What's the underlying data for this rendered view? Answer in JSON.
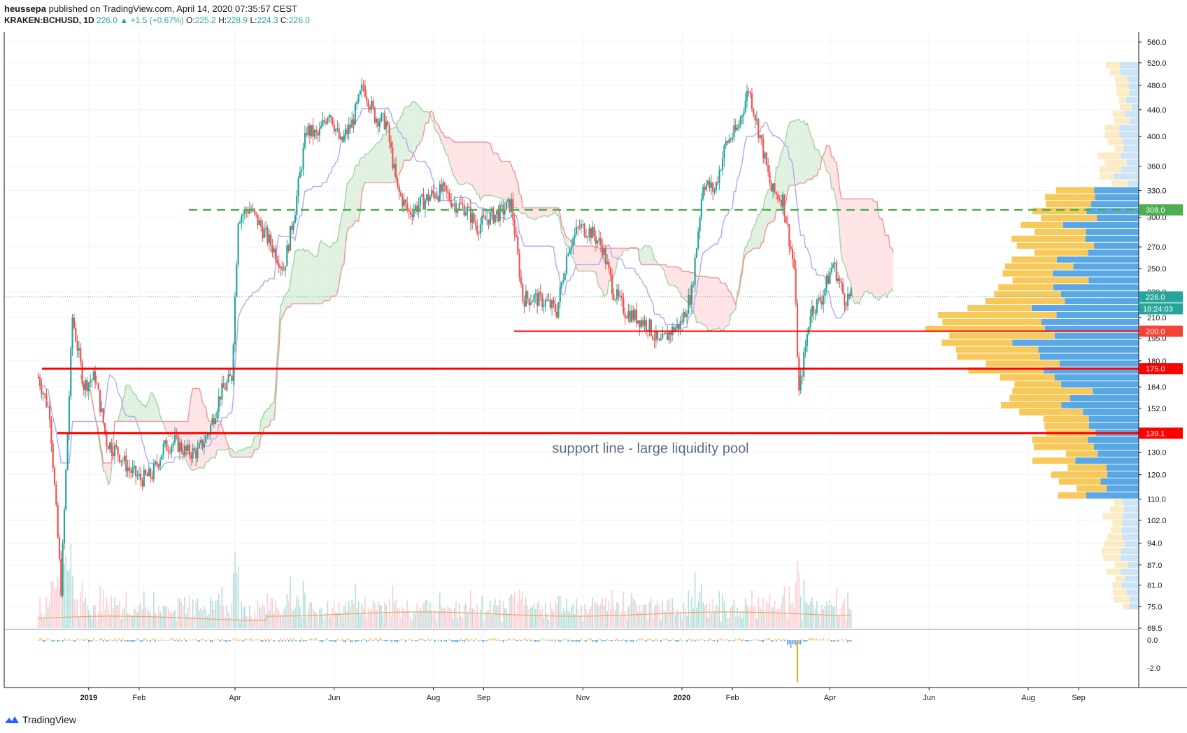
{
  "header": {
    "author": "heussepa",
    "published": "published on TradingView.com, April 14, 2020 07:35:57 CEST",
    "symbol": "KRAKEN:BCHUSD, 1D",
    "last": "226.0",
    "arrow": "▲",
    "change": "+1.5 (+0.67%)",
    "o_label": "O:",
    "o": "225.2",
    "h_label": "H:",
    "h": "228.9",
    "l_label": "L:",
    "l": "224.3",
    "c_label": "C:",
    "c": "226.0"
  },
  "footer": {
    "brand": "TradingView",
    "logo_icon": "tradingview-logo-icon"
  },
  "colors": {
    "bull": "#26a69a",
    "bear": "#ef5350",
    "grid": "#f0f3fa",
    "support": "#ff0000",
    "resistance_dash": "#4caf50",
    "vp_up": "#5aa7e6",
    "vp_down": "#f7c85a",
    "kijun": "#b3adf0",
    "cloud_green": "#c8e6c9",
    "cloud_red": "#ffcdd2",
    "volume_ma": "#f4a460"
  },
  "chart_data": {
    "type": "candlestick",
    "symbol": "KRAKEN:BCHUSD",
    "timeframe": "1D",
    "yscale": "log",
    "ylim": [
      69.5,
      580
    ],
    "price_ticks": [
      "560.0",
      "520.0",
      "480.0",
      "440.0",
      "400.0",
      "360.0",
      "330.0",
      "300.0",
      "270.0",
      "250.0",
      "230.0",
      "210.0",
      "195.0",
      "180.0",
      "164.0",
      "152.0",
      "140.0",
      "130.0",
      "120.0",
      "110.0",
      "102.0",
      "94.0",
      "87.0",
      "81.0",
      "75.0",
      "69.5"
    ],
    "osc_ticks": [
      "0.0",
      "-2.0"
    ],
    "time_ticks": [
      {
        "label": "2019",
        "bold": true
      },
      {
        "label": "Feb"
      },
      {
        "label": "Apr"
      },
      {
        "label": "Jun"
      },
      {
        "label": "Aug"
      },
      {
        "label": "Sep"
      },
      {
        "label": "Nov"
      },
      {
        "label": "2020",
        "bold": true
      },
      {
        "label": "Feb"
      },
      {
        "label": "Apr"
      },
      {
        "label": "Jun"
      },
      {
        "label": "Aug"
      },
      {
        "label": "Sep"
      }
    ],
    "price_path": [
      [
        "2018-12-01",
        170
      ],
      [
        "2018-12-08",
        150
      ],
      [
        "2018-12-15",
        80
      ],
      [
        "2018-12-22",
        210
      ],
      [
        "2018-12-29",
        165
      ],
      [
        "2019-01-05",
        170
      ],
      [
        "2019-01-12",
        135
      ],
      [
        "2019-01-19",
        130
      ],
      [
        "2019-01-26",
        122
      ],
      [
        "2019-02-02",
        118
      ],
      [
        "2019-02-09",
        120
      ],
      [
        "2019-02-16",
        132
      ],
      [
        "2019-02-23",
        135
      ],
      [
        "2019-03-02",
        130
      ],
      [
        "2019-03-09",
        130
      ],
      [
        "2019-03-16",
        140
      ],
      [
        "2019-03-23",
        160
      ],
      [
        "2019-03-30",
        170
      ],
      [
        "2019-04-03",
        300
      ],
      [
        "2019-04-10",
        310
      ],
      [
        "2019-04-17",
        290
      ],
      [
        "2019-04-24",
        270
      ],
      [
        "2019-05-01",
        250
      ],
      [
        "2019-05-08",
        310
      ],
      [
        "2019-05-15",
        410
      ],
      [
        "2019-05-22",
        400
      ],
      [
        "2019-05-29",
        440
      ],
      [
        "2019-06-05",
        390
      ],
      [
        "2019-06-12",
        420
      ],
      [
        "2019-06-19",
        480
      ],
      [
        "2019-06-26",
        430
      ],
      [
        "2019-07-03",
        420
      ],
      [
        "2019-07-10",
        330
      ],
      [
        "2019-07-17",
        305
      ],
      [
        "2019-07-24",
        315
      ],
      [
        "2019-07-31",
        325
      ],
      [
        "2019-08-07",
        330
      ],
      [
        "2019-08-14",
        315
      ],
      [
        "2019-08-21",
        310
      ],
      [
        "2019-08-28",
        290
      ],
      [
        "2019-09-04",
        300
      ],
      [
        "2019-09-11",
        305
      ],
      [
        "2019-09-18",
        315
      ],
      [
        "2019-09-25",
        225
      ],
      [
        "2019-10-02",
        225
      ],
      [
        "2019-10-09",
        222
      ],
      [
        "2019-10-16",
        215
      ],
      [
        "2019-10-23",
        270
      ],
      [
        "2019-10-30",
        290
      ],
      [
        "2019-11-06",
        285
      ],
      [
        "2019-11-13",
        270
      ],
      [
        "2019-11-20",
        230
      ],
      [
        "2019-11-27",
        215
      ],
      [
        "2019-12-04",
        210
      ],
      [
        "2019-12-11",
        205
      ],
      [
        "2019-12-18",
        190
      ],
      [
        "2019-12-25",
        200
      ],
      [
        "2019-12-31",
        205
      ],
      [
        "2020-01-07",
        230
      ],
      [
        "2020-01-14",
        340
      ],
      [
        "2020-01-21",
        330
      ],
      [
        "2020-01-28",
        390
      ],
      [
        "2020-02-04",
        410
      ],
      [
        "2020-02-11",
        475
      ],
      [
        "2020-02-18",
        400
      ],
      [
        "2020-02-25",
        330
      ],
      [
        "2020-03-03",
        320
      ],
      [
        "2020-03-10",
        250
      ],
      [
        "2020-03-13",
        160
      ],
      [
        "2020-03-20",
        215
      ],
      [
        "2020-03-27",
        225
      ],
      [
        "2020-04-03",
        255
      ],
      [
        "2020-04-10",
        225
      ],
      [
        "2020-04-14",
        226
      ]
    ],
    "horizontal_levels": [
      {
        "price": 308.0,
        "label": "308.0",
        "style": "dashed",
        "color": "#4caf50"
      },
      {
        "price": 226.0,
        "label": "226.0",
        "style": "dotted",
        "color": "#26a69a",
        "countdown": "18:24:03"
      },
      {
        "price": 200.0,
        "label": "200.0",
        "style": "solid",
        "color": "#ff0000"
      },
      {
        "price": 175.0,
        "label": "175.0",
        "style": "solid",
        "color": "#ff0000"
      },
      {
        "price": 139.1,
        "label": "139.1",
        "style": "solid",
        "color": "#ff0000"
      }
    ],
    "annotation": "support line - large liquidity pool",
    "indicators": [
      "Ichimoku Cloud",
      "Volume Profile",
      "Volume",
      "Oscillator"
    ]
  }
}
